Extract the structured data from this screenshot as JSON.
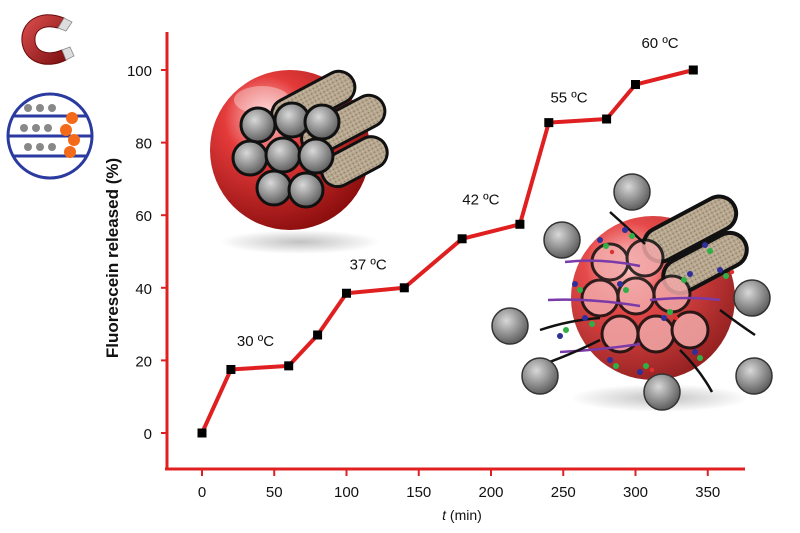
{
  "chart_data": {
    "type": "line",
    "xlabel_italic": "t",
    "xlabel_unit": " (min)",
    "ylabel": "Fluorescein released (%)",
    "xlim": [
      -25,
      375
    ],
    "ylim": [
      -10,
      110
    ],
    "xticks": [
      0,
      50,
      100,
      150,
      200,
      250,
      300,
      350
    ],
    "yticks": [
      0,
      20,
      40,
      60,
      80,
      100
    ],
    "grid": false,
    "series": [
      {
        "color": "#e02020",
        "marker_color": "#000000",
        "x": [
          0,
          20,
          60,
          80,
          100,
          140,
          180,
          220,
          240,
          280,
          300,
          340
        ],
        "y": [
          0,
          17.5,
          18.5,
          27,
          38.5,
          40,
          53.5,
          57.5,
          85.5,
          86.5,
          96,
          100
        ]
      }
    ],
    "annotations": [
      {
        "text": "30 ºC",
        "x": 37,
        "y": 24
      },
      {
        "text": "37 ºC",
        "x": 115,
        "y": 45
      },
      {
        "text": "42 ºC",
        "x": 193,
        "y": 63
      },
      {
        "text": "55 ºC",
        "x": 254,
        "y": 91
      },
      {
        "text": "60 ºC",
        "x": 317,
        "y": 106
      }
    ]
  },
  "illustrations": {
    "magnet": "magnet-icon",
    "capsule": "capsule-icon",
    "sphere_closed": "nanoparticle-closed-icon",
    "sphere_open": "nanoparticle-release-icon"
  }
}
